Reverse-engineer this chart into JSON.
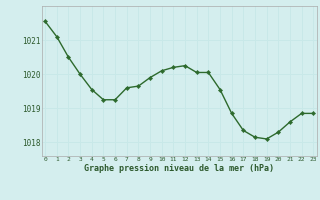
{
  "x": [
    0,
    1,
    2,
    3,
    4,
    5,
    6,
    7,
    8,
    9,
    10,
    11,
    12,
    13,
    14,
    15,
    16,
    17,
    18,
    19,
    20,
    21,
    22,
    23
  ],
  "y": [
    1021.55,
    1021.1,
    1020.5,
    1020.0,
    1019.55,
    1019.25,
    1019.25,
    1019.6,
    1019.65,
    1019.9,
    1020.1,
    1020.2,
    1020.25,
    1020.05,
    1020.05,
    1019.55,
    1018.85,
    1018.35,
    1018.15,
    1018.1,
    1018.3,
    1018.6,
    1018.85,
    1018.85
  ],
  "line_color": "#2d6a2d",
  "marker_color": "#2d6a2d",
  "bg_color": "#d4eeee",
  "grid_color": "#c8e8e8",
  "xlabel": "Graphe pression niveau de la mer (hPa)",
  "xlabel_color": "#2d5a2d",
  "tick_label_color": "#2d5a2d",
  "ylim": [
    1017.6,
    1022.0
  ],
  "yticks": [
    1018,
    1019,
    1020,
    1021
  ],
  "xticks": [
    0,
    1,
    2,
    3,
    4,
    5,
    6,
    7,
    8,
    9,
    10,
    11,
    12,
    13,
    14,
    15,
    16,
    17,
    18,
    19,
    20,
    21,
    22,
    23
  ],
  "xtick_labels": [
    "0",
    "1",
    "2",
    "3",
    "4",
    "5",
    "6",
    "7",
    "8",
    "9",
    "10",
    "11",
    "12",
    "13",
    "14",
    "15",
    "16",
    "17",
    "18",
    "19",
    "20",
    "21",
    "22",
    "23"
  ],
  "xlim": [
    -0.3,
    23.3
  ]
}
